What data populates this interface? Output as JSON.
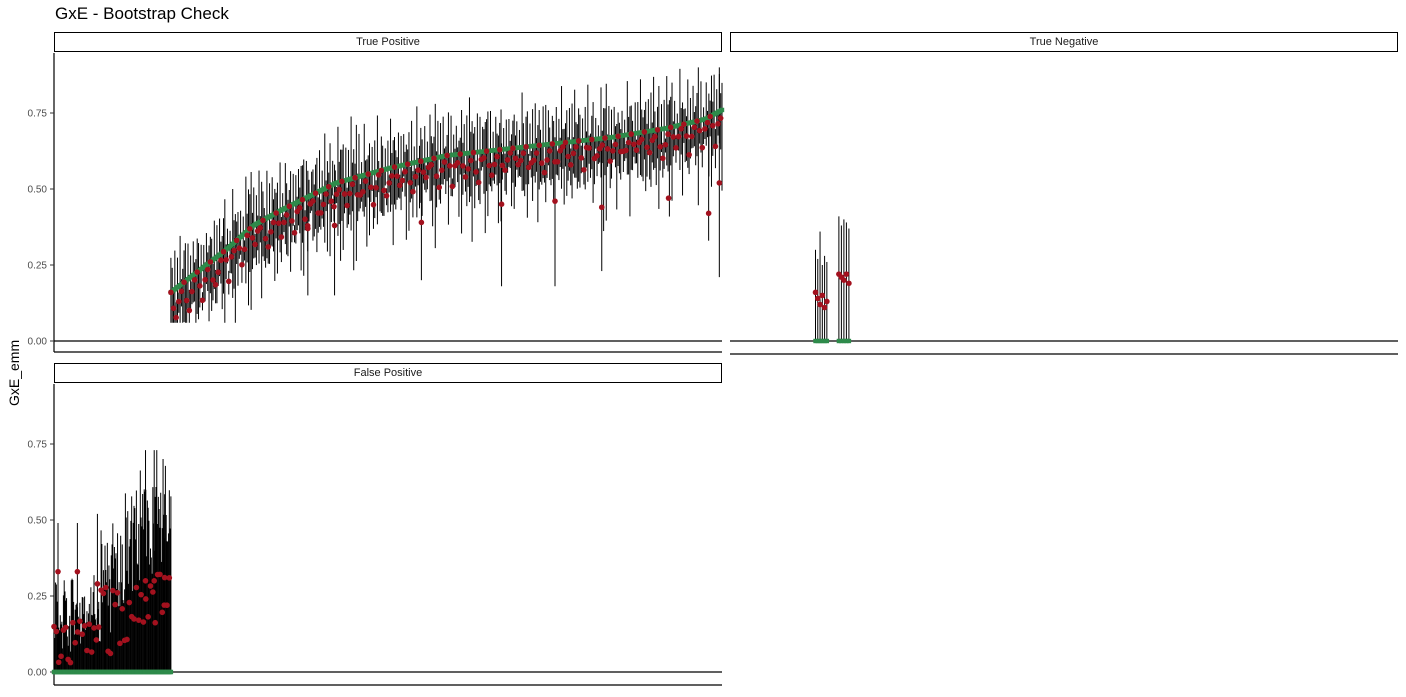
{
  "chart_data": {
    "type": "scatter",
    "title": "GxE - Bootstrap Check",
    "xlabel": "",
    "ylabel": "GxE_emm",
    "ylim": [
      -0.015,
      0.93
    ],
    "yticks": [
      "0.00",
      "0.25",
      "0.50",
      "0.75"
    ],
    "ytick_values": [
      0,
      0.25,
      0.5,
      0.75
    ],
    "x_ticks_shown": false,
    "grid": false,
    "colors": {
      "estimate": "#A3111E",
      "reference": "#2E8B4B",
      "interval": "#000000"
    },
    "series": [
      {
        "key": "estimate",
        "marker": "circle",
        "color": "#A3111E"
      },
      {
        "key": "reference",
        "marker": "square",
        "color": "#2E8B4B"
      },
      {
        "key": "interval",
        "marker": "vertical segment",
        "color": "#000000"
      }
    ],
    "panels": [
      {
        "strip": "True Positive",
        "y_axis_shown": true,
        "n_items": 420,
        "reference_curve": [
          [
            0,
            0.16
          ],
          [
            0.05,
            0.23
          ],
          [
            0.1,
            0.3
          ],
          [
            0.15,
            0.38
          ],
          [
            0.2,
            0.43
          ],
          [
            0.3,
            0.52
          ],
          [
            0.4,
            0.57
          ],
          [
            0.5,
            0.61
          ],
          [
            0.6,
            0.63
          ],
          [
            0.7,
            0.65
          ],
          [
            0.8,
            0.67
          ],
          [
            0.9,
            0.7
          ],
          [
            0.97,
            0.73
          ],
          [
            1.0,
            0.76
          ]
        ],
        "x_start": 0.175,
        "x_end": 1.0,
        "estimate_offsets": [
          0.0,
          -0.03,
          -0.05,
          0.02,
          -0.08,
          -0.01,
          -0.04,
          0.03,
          -0.02,
          -0.06
        ],
        "interval_halfwidths": [
          0.1,
          0.14,
          0.06,
          0.18,
          0.09,
          0.12,
          0.07,
          0.15,
          0.05,
          0.11
        ],
        "outliers": [
          {
            "x": 0.38,
            "estimate": 0.37,
            "lo": 0.15,
            "hi": 0.56
          },
          {
            "x": 0.42,
            "estimate": 0.38,
            "lo": 0.15,
            "hi": 0.58
          },
          {
            "x": 0.55,
            "estimate": 0.39,
            "lo": 0.2,
            "hi": 0.59
          },
          {
            "x": 0.67,
            "estimate": 0.45,
            "lo": 0.18,
            "hi": 0.65
          },
          {
            "x": 0.75,
            "estimate": 0.46,
            "lo": 0.18,
            "hi": 0.65
          },
          {
            "x": 0.82,
            "estimate": 0.44,
            "lo": 0.23,
            "hi": 0.64
          },
          {
            "x": 0.92,
            "estimate": 0.47,
            "lo": 0.47,
            "hi": 0.47
          },
          {
            "x": 0.98,
            "estimate": 0.42,
            "lo": 0.33,
            "hi": 0.7
          },
          {
            "x": 0.996,
            "estimate": 0.52,
            "lo": 0.21,
            "hi": 0.9
          }
        ]
      },
      {
        "strip": "True Negative",
        "y_axis_shown": false,
        "groups": [
          {
            "x_from": 0.128,
            "x_to": 0.145,
            "reference": 0.0,
            "estimates": [
              0.16,
              0.14,
              0.12,
              0.15,
              0.11,
              0.13
            ],
            "hi_values": [
              0.3,
              0.27,
              0.36,
              0.25,
              0.28,
              0.26
            ]
          },
          {
            "x_from": 0.163,
            "x_to": 0.178,
            "reference": 0.0,
            "estimates": [
              0.22,
              0.21,
              0.2,
              0.22,
              0.19
            ],
            "hi_values": [
              0.41,
              0.38,
              0.4,
              0.39,
              0.37
            ]
          }
        ]
      },
      {
        "strip": "False Positive",
        "y_axis_shown": true,
        "n_items": 150,
        "reference": 0.0,
        "x_end": 0.175,
        "highlighted_points": [
          {
            "x": 0.006,
            "estimate": 0.33,
            "hi": 0.49
          },
          {
            "x": 0.035,
            "estimate": 0.33,
            "hi": 0.49
          },
          {
            "x": 0.065,
            "estimate": 0.29,
            "hi": 0.52
          },
          {
            "x": 0.137,
            "estimate": 0.3,
            "hi": 0.73
          },
          {
            "x": 0.15,
            "estimate": 0.3,
            "hi": 0.73
          },
          {
            "x": 0.165,
            "estimate": 0.22,
            "hi": 0.44
          }
        ]
      }
    ]
  }
}
